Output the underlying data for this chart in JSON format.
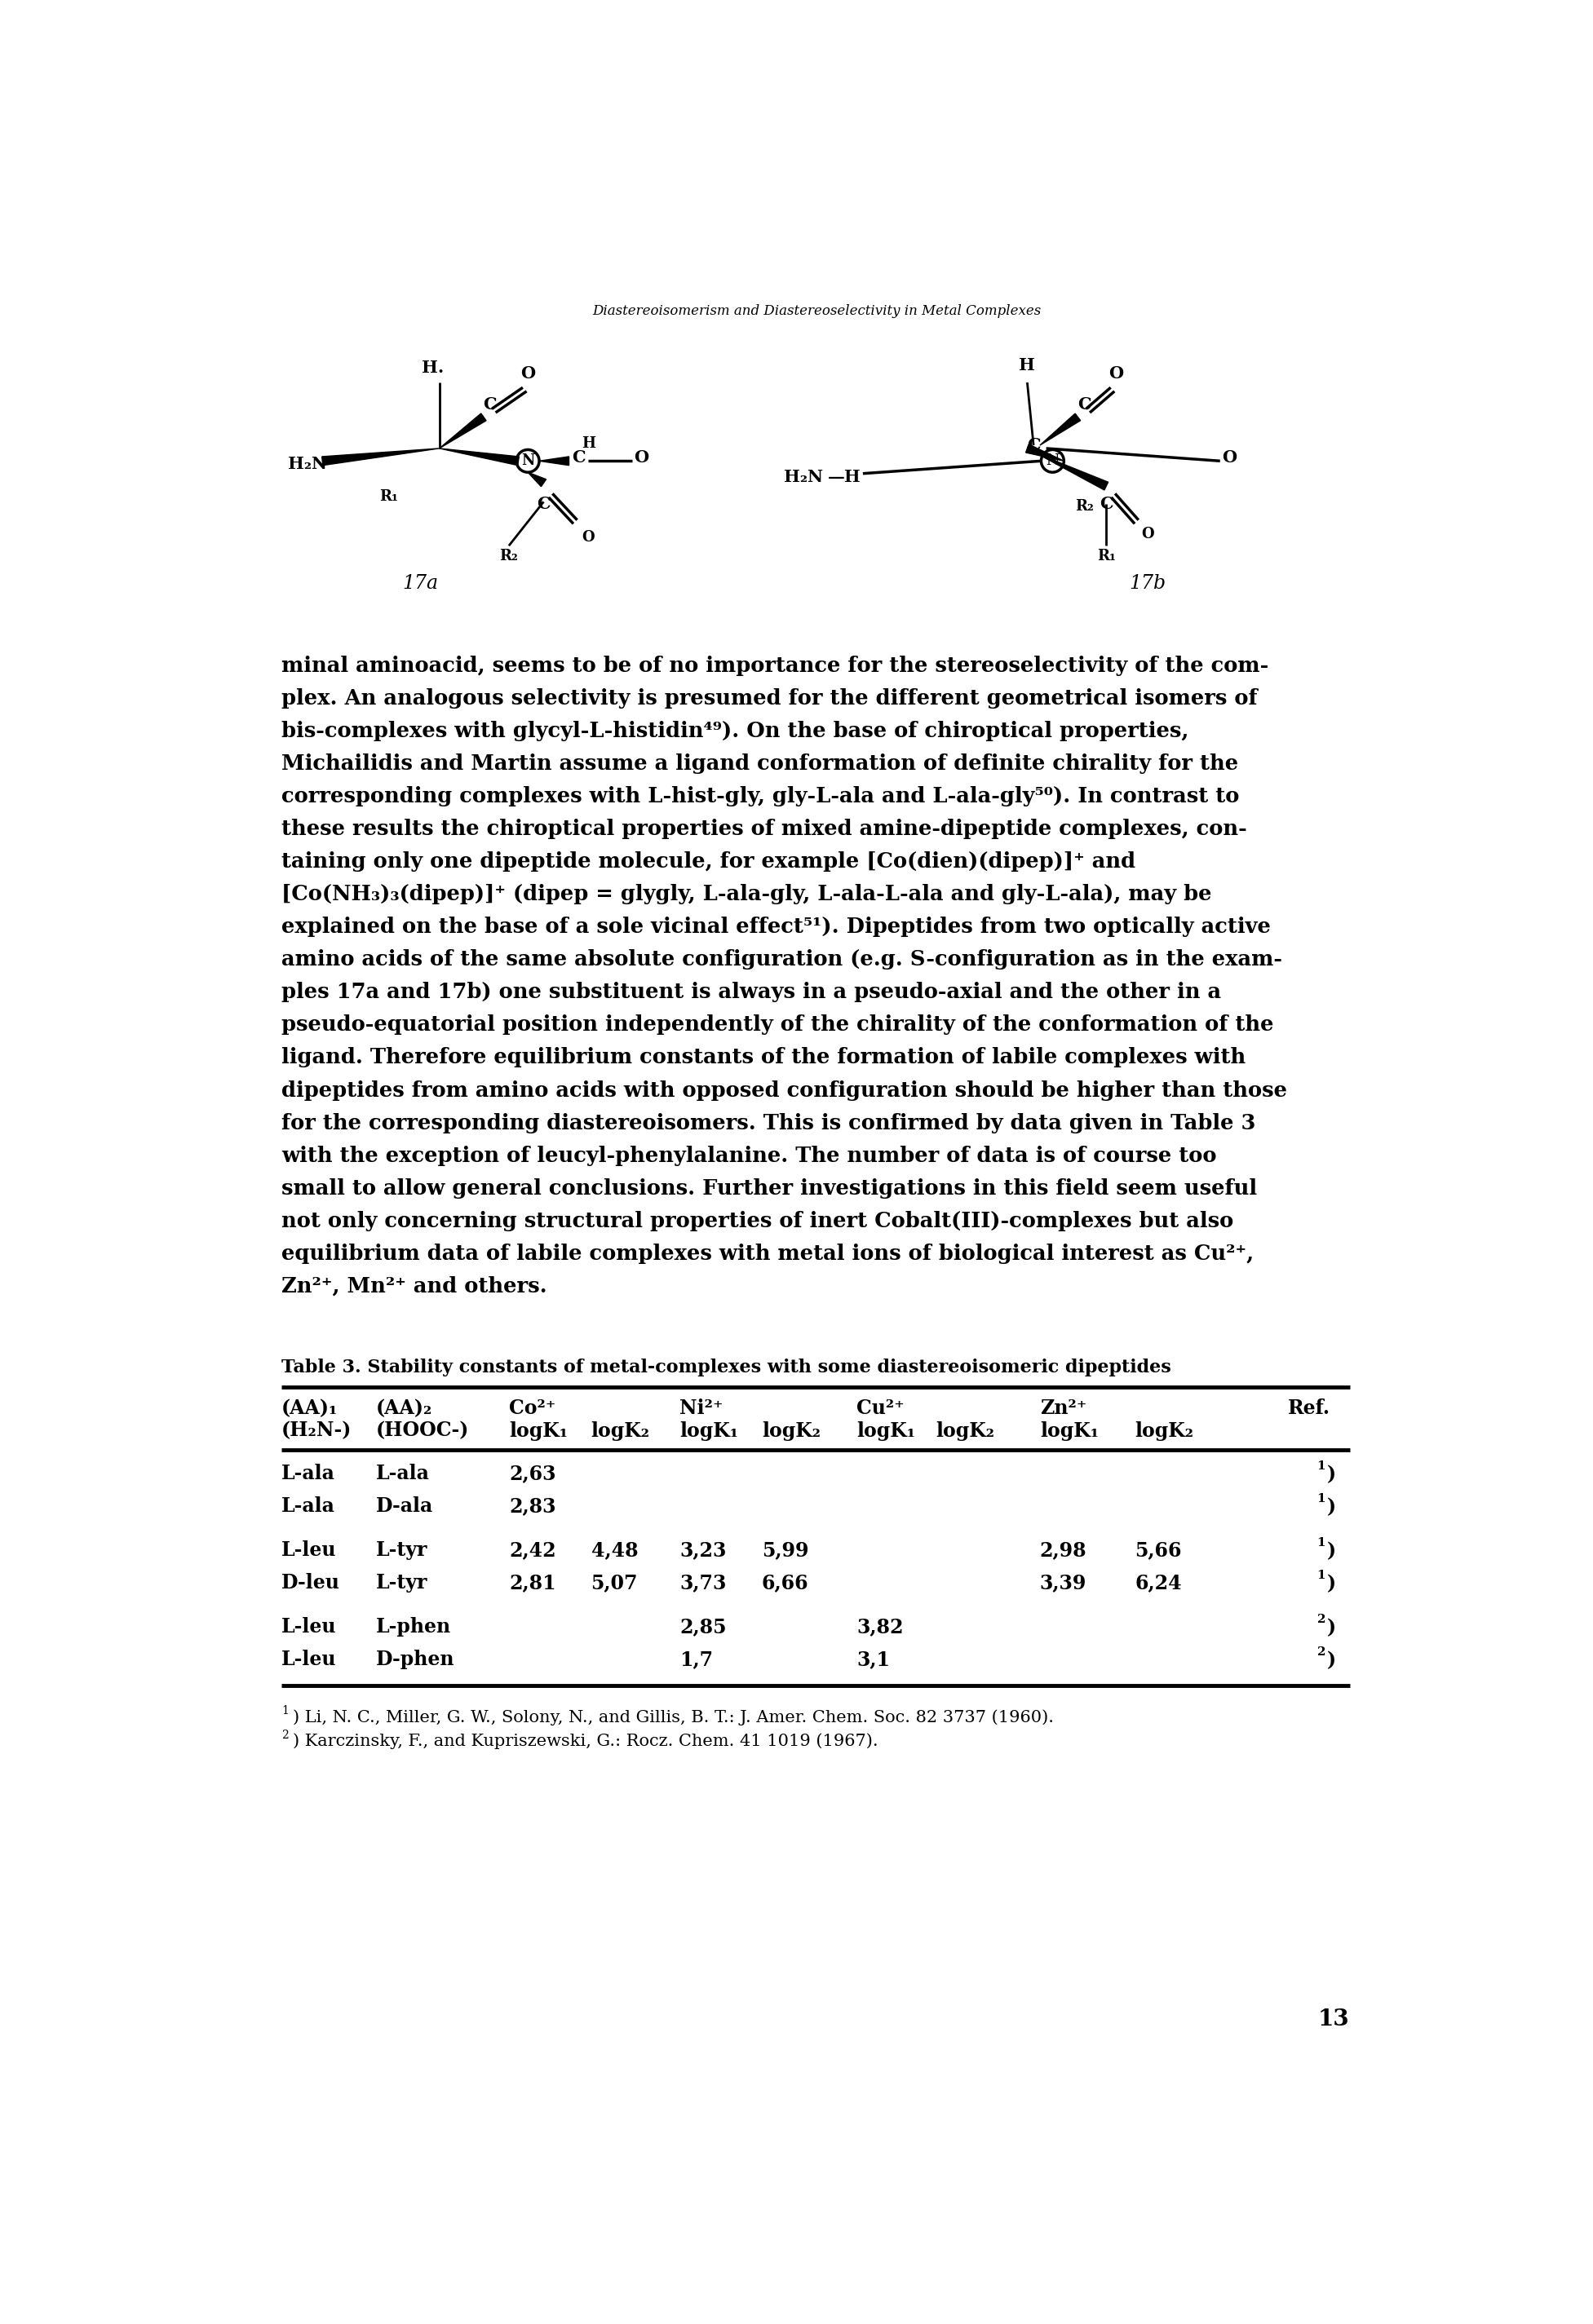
{
  "header_title": "Diastereoisomerism and Diastereoselectivity in Metal Complexes",
  "page_number": "13",
  "body_text": [
    "minal aminoacid, seems to be of no importance for the stereoselectivity of the com-",
    "plex. An analogous selectivity is presumed for the different geometrical isomers of",
    "bis-complexes with glycyl-L-histidin⁴⁹). On the base of chiroptical properties,",
    "Michailidis and Martin assume a ligand conformation of definite chirality for the",
    "corresponding complexes with L-hist-gly, gly-L-ala and L-ala-gly⁵⁰). In contrast to",
    "these results the chiroptical properties of mixed amine-dipeptide complexes, con-",
    "taining only one dipeptide molecule, for example [Co(dien)(dipep)]⁺ and",
    "[Co(NH₃)₃(dipep)]⁺ (dipep = glygly, L-ala-gly, L-ala-L-ala and gly-L-ala), may be",
    "explained on the base of a sole vicinal effect⁵¹). Dipeptides from two optically active",
    "amino acids of the same absolute configuration (e.g. S-configuration as in the exam-",
    "ples 17a and 17b) one substituent is always in a pseudo-axial and the other in a",
    "pseudo-equatorial position independently of the chirality of the conformation of the",
    "ligand. Therefore equilibrium constants of the formation of labile complexes with",
    "dipeptides from amino acids with opposed configuration should be higher than those",
    "for the corresponding diastereoisomers. This is confirmed by data given in Table 3",
    "with the exception of leucyl-phenylalanine. The number of data is of course too",
    "small to allow general conclusions. Further investigations in this field seem useful",
    "not only concerning structural properties of inert Cobalt(III)-complexes but also",
    "equilibrium data of labile complexes with metal ions of biological interest as Cu²⁺,",
    "Zn²⁺, Mn²⁺ and others."
  ],
  "table_caption": "Table 3. Stability constants of metal-complexes with some diastereoisomeric dipeptides",
  "col_headers_line1": [
    "(AA)₁",
    "(AA)₂",
    "Co²⁺",
    "",
    "Ni²⁺",
    "",
    "Cu²⁺",
    "",
    "Zn²⁺",
    "",
    "Ref."
  ],
  "col_headers_line2": [
    "(H₂N-)",
    "(HOOC-)",
    "logK₁",
    "logK₂",
    "logK₁",
    "logK₂",
    "logK₁",
    "logK₂",
    "logK₁",
    "logK₂",
    ""
  ],
  "table_rows": [
    [
      "L-ala",
      "L-ala",
      "2,63",
      "",
      "",
      "",
      "",
      "",
      "",
      "",
      "1)"
    ],
    [
      "L-ala",
      "D-ala",
      "2,83",
      "",
      "",
      "",
      "",
      "",
      "",
      "",
      "1)"
    ],
    [
      "L-leu",
      "L-tyr",
      "2,42",
      "4,48",
      "3,23",
      "5,99",
      "",
      "",
      "2,98",
      "5,66",
      "1)"
    ],
    [
      "D-leu",
      "L-tyr",
      "2,81",
      "5,07",
      "3,73",
      "6,66",
      "",
      "",
      "3,39",
      "6,24",
      "1)"
    ],
    [
      "L-leu",
      "L-phen",
      "",
      "",
      "2,85",
      "",
      "3,82",
      "",
      "",
      "",
      "2)"
    ],
    [
      "L-leu",
      "D-phen",
      "",
      "",
      "1,7",
      "",
      "3,1",
      "",
      "",
      "",
      "2)"
    ]
  ],
  "footnotes": [
    "1) Li, N. C., Miller, G. W., Solony, N., and Gillis, B. T.: J. Amer. Chem. Soc. 82 3737 (1960).",
    "2) Karczinsky, F., and Kupriszewski, G.: Rocz. Chem. 41 1019 (1967)."
  ],
  "background_color": "#ffffff",
  "text_color": "#000000"
}
